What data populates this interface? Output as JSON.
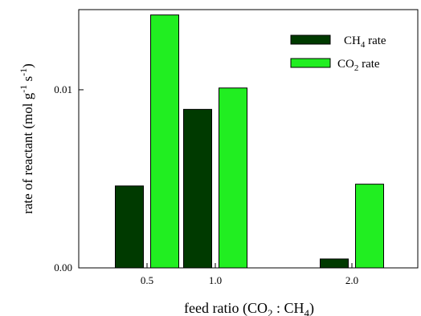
{
  "chart_data": {
    "type": "bar",
    "xlabel_parts": [
      "feed ratio (CO",
      "2",
      " : CH",
      "4",
      ")"
    ],
    "ylabel_parts": [
      "rate of reactant (mol g",
      "-1",
      " s",
      "-1",
      ")"
    ],
    "x_ticks": [
      "0.5",
      "1.0",
      "2.0"
    ],
    "y_ticks": [
      "0.00",
      "0.01"
    ],
    "ylim": [
      0,
      0.0145
    ],
    "categories": [
      "0.5",
      "1.0",
      "2.0"
    ],
    "series": [
      {
        "name_parts": [
          "CH",
          "4",
          " rate"
        ],
        "color": "#003a00",
        "values": [
          0.0046,
          0.0089,
          0.0005
        ]
      },
      {
        "name_parts": [
          "CO",
          "2",
          " rate"
        ],
        "color": "#21ee21",
        "values": [
          0.0142,
          0.0101,
          0.0047
        ]
      }
    ],
    "legend_position": "top-right",
    "grid": false
  }
}
